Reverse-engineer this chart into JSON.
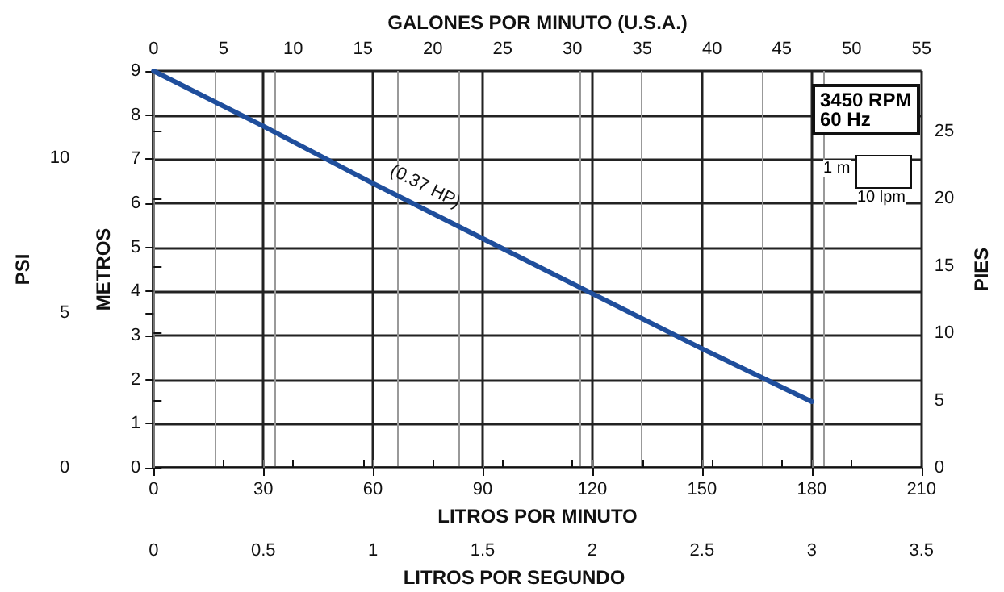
{
  "chart_data": {
    "type": "line",
    "xlabel": "LITROS POR MINUTO",
    "ylabel": "METROS",
    "y2label": "PIES",
    "y3label": "PSI",
    "x2label": "GALONES POR MINUTO (U.S.A.)",
    "xlim": [
      0,
      210
    ],
    "xticks": [
      0,
      30,
      60,
      90,
      120,
      150,
      180,
      210
    ],
    "x2lim": [
      0,
      55
    ],
    "x2ticks": [
      0,
      5,
      10,
      15,
      20,
      25,
      30,
      35,
      40,
      45,
      50,
      55
    ],
    "ylim": [
      0,
      9
    ],
    "yticks": [
      0,
      1,
      2,
      3,
      4,
      5,
      6,
      7,
      8,
      9
    ],
    "y2lim": [
      0,
      29.5
    ],
    "y2ticks": [
      0,
      5,
      10,
      15,
      20,
      25
    ],
    "y3lim": [
      0,
      12.8
    ],
    "y3ticks": [
      0,
      5,
      10
    ],
    "x": [
      0,
      30,
      60,
      90,
      120,
      150,
      180
    ],
    "series": [
      {
        "name": "(0.37 HP)",
        "color": "#1f4e9c",
        "values": [
          9,
          7.75,
          6.45,
          5.2,
          3.95,
          2.7,
          1.5
        ]
      }
    ],
    "annotations": [
      "3450 RPM",
      "60 Hz",
      "1 m",
      "10 lpm",
      "LITROS POR SEGUNDO",
      "0",
      "0.5",
      "1",
      "1.5",
      "2",
      "2.5",
      "3",
      "3.5"
    ],
    "grid": true,
    "legend": false,
    "marker": "none",
    "line_style": "solid"
  }
}
